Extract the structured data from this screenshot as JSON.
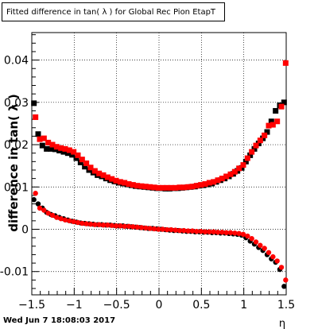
{
  "title": "Fitted difference in tan( λ ) for Global Rec Pion EtapT",
  "footer": "Wed Jun  7 18:08:03 2017",
  "colors": {
    "series_a": "#000000",
    "series_b": "#ff0000"
  },
  "chart_data": {
    "type": "scatter",
    "title": "Fitted difference in tan( λ ) for Global Rec Pion EtapT",
    "xlabel": "η",
    "ylabel": "difference in tan( λ )",
    "xlim": [
      -1.5,
      1.5
    ],
    "ylim": [
      -0.0155,
      0.0465
    ],
    "xticks": [
      -1.5,
      -1,
      -0.5,
      0,
      0.5,
      1,
      1.5
    ],
    "xtick_labels": [
      "−1.5",
      "−1",
      "−0.5",
      "0",
      "0.5",
      "1",
      "1.5"
    ],
    "yticks": [
      -0.01,
      0,
      0.01,
      0.02,
      0.03,
      0.04
    ],
    "ytick_labels": [
      "-0.01",
      "0",
      "0.01",
      "0.02",
      "0.03",
      "0.04"
    ],
    "grid": true,
    "x": [
      -1.475,
      -1.425,
      -1.375,
      -1.325,
      -1.275,
      -1.225,
      -1.175,
      -1.125,
      -1.075,
      -1.025,
      -0.975,
      -0.925,
      -0.875,
      -0.825,
      -0.775,
      -0.725,
      -0.675,
      -0.625,
      -0.575,
      -0.525,
      -0.475,
      -0.425,
      -0.375,
      -0.325,
      -0.275,
      -0.225,
      -0.175,
      -0.125,
      -0.075,
      -0.025,
      0.025,
      0.075,
      0.125,
      0.175,
      0.225,
      0.275,
      0.325,
      0.375,
      0.425,
      0.475,
      0.525,
      0.575,
      0.625,
      0.675,
      0.725,
      0.775,
      0.825,
      0.875,
      0.925,
      0.975,
      1.025,
      1.075,
      1.125,
      1.175,
      1.225,
      1.275,
      1.325,
      1.375,
      1.425,
      1.475
    ],
    "series": [
      {
        "values": [
          0.0298,
          0.0225,
          0.0198,
          0.019,
          0.019,
          0.0189,
          0.0186,
          0.0183,
          0.018,
          0.0176,
          0.0168,
          0.0158,
          0.0148,
          0.014,
          0.0134,
          0.0128,
          0.0125,
          0.012,
          0.0116,
          0.0113,
          0.011,
          0.0108,
          0.0106,
          0.0104,
          0.0102,
          0.0101,
          0.01,
          0.0099,
          0.0098,
          0.0097,
          0.0097,
          0.0096,
          0.0096,
          0.0097,
          0.0097,
          0.0098,
          0.0099,
          0.01,
          0.0101,
          0.0103,
          0.0104,
          0.0106,
          0.0108,
          0.0112,
          0.0116,
          0.012,
          0.0125,
          0.0131,
          0.0138,
          0.0145,
          0.016,
          0.0175,
          0.019,
          0.0203,
          0.0215,
          0.023,
          0.0255,
          0.028,
          0.0293,
          0.03
        ]
      },
      {
        "values": [
          0.0265,
          0.0213,
          0.0215,
          0.0205,
          0.02,
          0.0195,
          0.0192,
          0.019,
          0.0187,
          0.0183,
          0.0175,
          0.0165,
          0.0156,
          0.0146,
          0.0138,
          0.0132,
          0.0128,
          0.0123,
          0.0119,
          0.0115,
          0.0112,
          0.011,
          0.0107,
          0.0105,
          0.0103,
          0.0102,
          0.0101,
          0.01,
          0.0099,
          0.0098,
          0.0098,
          0.0098,
          0.0098,
          0.0098,
          0.0099,
          0.0099,
          0.01,
          0.0101,
          0.0103,
          0.0105,
          0.0107,
          0.011,
          0.0112,
          0.0116,
          0.012,
          0.0125,
          0.013,
          0.0136,
          0.0144,
          0.0152,
          0.0168,
          0.0183,
          0.0198,
          0.021,
          0.0222,
          0.0245,
          0.0247,
          0.0255,
          0.029,
          0.0393
        ]
      },
      {
        "values": [
          0.007,
          0.006,
          0.005,
          0.004,
          0.0035,
          0.0032,
          0.0028,
          0.0025,
          0.0022,
          0.0019,
          0.0017,
          0.0015,
          0.0014,
          0.0013,
          0.0012,
          0.0011,
          0.0011,
          0.001,
          0.001,
          0.0009,
          0.0008,
          0.0008,
          0.0007,
          0.0006,
          0.0005,
          0.0004,
          0.0003,
          0.0002,
          0.0002,
          0.0001,
          0.0,
          -0.0001,
          -0.0002,
          -0.0003,
          -0.0003,
          -0.0004,
          -0.0005,
          -0.0005,
          -0.0006,
          -0.0006,
          -0.0007,
          -0.0007,
          -0.0008,
          -0.0008,
          -0.0009,
          -0.0009,
          -0.001,
          -0.0011,
          -0.0012,
          -0.0014,
          -0.002,
          -0.0028,
          -0.0035,
          -0.0043,
          -0.005,
          -0.006,
          -0.007,
          -0.0078,
          -0.0095,
          -0.0135
        ]
      },
      {
        "values": [
          0.0085,
          0.005,
          0.0045,
          0.0038,
          0.0033,
          0.0028,
          0.0025,
          0.0022,
          0.002,
          0.0018,
          0.0016,
          0.0014,
          0.0013,
          0.0012,
          0.0011,
          0.0011,
          0.001,
          0.001,
          0.0009,
          0.0008,
          0.0008,
          0.0007,
          0.0007,
          0.0006,
          0.0005,
          0.0004,
          0.0003,
          0.0002,
          0.0001,
          0.0,
          0.0,
          -0.0001,
          -0.0001,
          -0.0002,
          -0.0003,
          -0.0003,
          -0.0004,
          -0.0004,
          -0.0005,
          -0.0005,
          -0.0006,
          -0.0006,
          -0.0006,
          -0.0007,
          -0.0007,
          -0.0008,
          -0.0008,
          -0.0009,
          -0.001,
          -0.0012,
          -0.0016,
          -0.0022,
          -0.003,
          -0.0038,
          -0.0045,
          -0.0055,
          -0.0065,
          -0.0075,
          -0.009,
          -0.012
        ]
      }
    ]
  }
}
